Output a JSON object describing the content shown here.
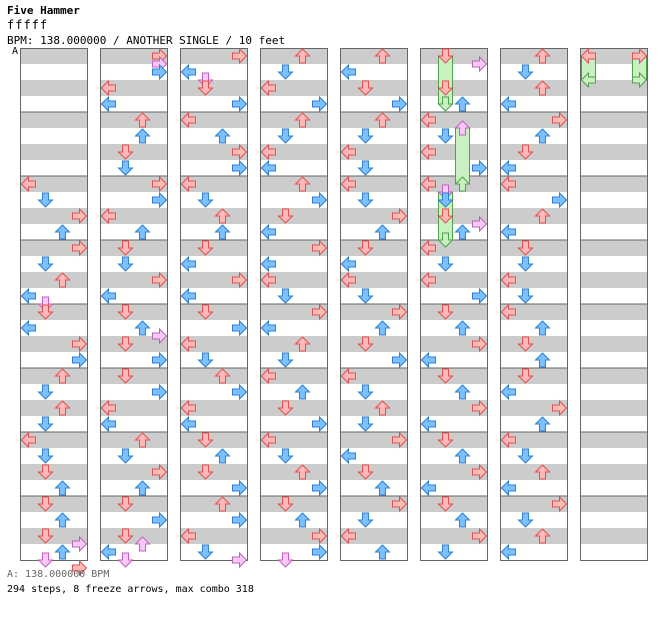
{
  "header": {
    "title": "Five Hammer",
    "difficulty_meter": "fffff",
    "info": "BPM: 138.000000 / ANOTHER SINGLE / 10 feet",
    "section_marker": "A"
  },
  "footer": {
    "bpm_line": "A: 138.000000 BPM",
    "stats_line": "294 steps, 8 freeze arrows, max combo 318"
  },
  "colors": {
    "band_gray": "#cccccc",
    "band_white": "#ffffff",
    "column_border": "#666666",
    "arrow_red_fill": "#ffb8b8",
    "arrow_red_stroke": "#e05050",
    "arrow_blue_fill": "#7ec0ff",
    "arrow_blue_stroke": "#2a7fd0",
    "arrow_pink_fill": "#f8c8f8",
    "arrow_pink_stroke": "#c060c0",
    "freeze_fill": "#c8f0c0",
    "freeze_stroke": "#50a050"
  },
  "chart_data": {
    "type": "step-chart",
    "lanes": [
      "left",
      "down",
      "up",
      "right"
    ],
    "columns": 8,
    "measures_per_column": 8,
    "steps_per_measure": 16,
    "total_steps": 294,
    "freeze_arrows": 8,
    "max_combo": 318,
    "bpm": 138,
    "notes": [
      {
        "c": 0,
        "pos": 8,
        "lane": 0
      },
      {
        "c": 0,
        "pos": 9,
        "lane": 1
      },
      {
        "c": 0,
        "pos": 10,
        "lane": 3
      },
      {
        "c": 0,
        "pos": 11,
        "lane": 2
      },
      {
        "c": 0,
        "pos": 12,
        "lane": 3
      },
      {
        "c": 0,
        "pos": 13,
        "lane": 1
      },
      {
        "c": 0,
        "pos": 14,
        "lane": 2
      },
      {
        "c": 0,
        "pos": 15,
        "lane": 0
      },
      {
        "c": 0,
        "pos": 15.5,
        "lane": 1
      },
      {
        "c": 0,
        "pos": 16,
        "lane": 1
      },
      {
        "c": 0,
        "pos": 17,
        "lane": 0
      },
      {
        "c": 0,
        "pos": 18,
        "lane": 3
      },
      {
        "c": 0,
        "pos": 19,
        "lane": 3
      },
      {
        "c": 0,
        "pos": 20,
        "lane": 2
      },
      {
        "c": 0,
        "pos": 21,
        "lane": 1
      },
      {
        "c": 0,
        "pos": 22,
        "lane": 2
      },
      {
        "c": 0,
        "pos": 23,
        "lane": 1
      },
      {
        "c": 0,
        "pos": 24,
        "lane": 0
      },
      {
        "c": 0,
        "pos": 25,
        "lane": 1
      },
      {
        "c": 0,
        "pos": 26,
        "lane": 1
      },
      {
        "c": 0,
        "pos": 27,
        "lane": 2
      },
      {
        "c": 0,
        "pos": 28,
        "lane": 1
      },
      {
        "c": 0,
        "pos": 29,
        "lane": 2
      },
      {
        "c": 0,
        "pos": 30,
        "lane": 1
      },
      {
        "c": 0,
        "pos": 30.5,
        "lane": 3
      },
      {
        "c": 0,
        "pos": 31,
        "lane": 2
      },
      {
        "c": 0,
        "pos": 31.5,
        "lane": 1
      },
      {
        "c": 0,
        "pos": 32,
        "lane": 3
      },
      {
        "c": 1,
        "pos": 0,
        "lane": 3
      },
      {
        "c": 1,
        "pos": 0.5,
        "lane": 3
      },
      {
        "c": 1,
        "pos": 1,
        "lane": 3
      },
      {
        "c": 1,
        "pos": 2,
        "lane": 0
      },
      {
        "c": 1,
        "pos": 3,
        "lane": 0
      },
      {
        "c": 1,
        "pos": 4,
        "lane": 2
      },
      {
        "c": 1,
        "pos": 5,
        "lane": 2
      },
      {
        "c": 1,
        "pos": 6,
        "lane": 1
      },
      {
        "c": 1,
        "pos": 7,
        "lane": 1
      },
      {
        "c": 1,
        "pos": 8,
        "lane": 3
      },
      {
        "c": 1,
        "pos": 9,
        "lane": 3
      },
      {
        "c": 1,
        "pos": 10,
        "lane": 0
      },
      {
        "c": 1,
        "pos": 11,
        "lane": 2
      },
      {
        "c": 1,
        "pos": 12,
        "lane": 1
      },
      {
        "c": 1,
        "pos": 13,
        "lane": 1
      },
      {
        "c": 1,
        "pos": 14,
        "lane": 3
      },
      {
        "c": 1,
        "pos": 15,
        "lane": 0
      },
      {
        "c": 1,
        "pos": 16,
        "lane": 1
      },
      {
        "c": 1,
        "pos": 17,
        "lane": 2
      },
      {
        "c": 1,
        "pos": 17.5,
        "lane": 3
      },
      {
        "c": 1,
        "pos": 18,
        "lane": 1
      },
      {
        "c": 1,
        "pos": 19,
        "lane": 3
      },
      {
        "c": 1,
        "pos": 20,
        "lane": 1
      },
      {
        "c": 1,
        "pos": 21,
        "lane": 3
      },
      {
        "c": 1,
        "pos": 22,
        "lane": 0
      },
      {
        "c": 1,
        "pos": 23,
        "lane": 0
      },
      {
        "c": 1,
        "pos": 24,
        "lane": 2
      },
      {
        "c": 1,
        "pos": 25,
        "lane": 1
      },
      {
        "c": 1,
        "pos": 26,
        "lane": 3
      },
      {
        "c": 1,
        "pos": 27,
        "lane": 2
      },
      {
        "c": 1,
        "pos": 28,
        "lane": 1
      },
      {
        "c": 1,
        "pos": 29,
        "lane": 3
      },
      {
        "c": 1,
        "pos": 30,
        "lane": 1
      },
      {
        "c": 1,
        "pos": 30.5,
        "lane": 2
      },
      {
        "c": 1,
        "pos": 31,
        "lane": 0
      },
      {
        "c": 1,
        "pos": 31.5,
        "lane": 1
      },
      {
        "c": 2,
        "pos": 0,
        "lane": 3
      },
      {
        "c": 2,
        "pos": 1,
        "lane": 0
      },
      {
        "c": 2,
        "pos": 1.5,
        "lane": 1
      },
      {
        "c": 2,
        "pos": 2,
        "lane": 1
      },
      {
        "c": 2,
        "pos": 3,
        "lane": 3
      },
      {
        "c": 2,
        "pos": 4,
        "lane": 0
      },
      {
        "c": 2,
        "pos": 5,
        "lane": 2
      },
      {
        "c": 2,
        "pos": 6,
        "lane": 3
      },
      {
        "c": 2,
        "pos": 7,
        "lane": 3
      },
      {
        "c": 2,
        "pos": 8,
        "lane": 0
      },
      {
        "c": 2,
        "pos": 9,
        "lane": 1
      },
      {
        "c": 2,
        "pos": 10,
        "lane": 2
      },
      {
        "c": 2,
        "pos": 11,
        "lane": 2
      },
      {
        "c": 2,
        "pos": 12,
        "lane": 1
      },
      {
        "c": 2,
        "pos": 13,
        "lane": 0
      },
      {
        "c": 2,
        "pos": 14,
        "lane": 3
      },
      {
        "c": 2,
        "pos": 15,
        "lane": 0
      },
      {
        "c": 2,
        "pos": 16,
        "lane": 1
      },
      {
        "c": 2,
        "pos": 17,
        "lane": 3
      },
      {
        "c": 2,
        "pos": 18,
        "lane": 0
      },
      {
        "c": 2,
        "pos": 19,
        "lane": 1
      },
      {
        "c": 2,
        "pos": 20,
        "lane": 2
      },
      {
        "c": 2,
        "pos": 21,
        "lane": 3
      },
      {
        "c": 2,
        "pos": 22,
        "lane": 0
      },
      {
        "c": 2,
        "pos": 23,
        "lane": 0
      },
      {
        "c": 2,
        "pos": 24,
        "lane": 1
      },
      {
        "c": 2,
        "pos": 25,
        "lane": 2
      },
      {
        "c": 2,
        "pos": 26,
        "lane": 1
      },
      {
        "c": 2,
        "pos": 27,
        "lane": 3
      },
      {
        "c": 2,
        "pos": 28,
        "lane": 2
      },
      {
        "c": 2,
        "pos": 29,
        "lane": 3
      },
      {
        "c": 2,
        "pos": 30,
        "lane": 0
      },
      {
        "c": 2,
        "pos": 31,
        "lane": 1
      },
      {
        "c": 2,
        "pos": 31.5,
        "lane": 3
      },
      {
        "c": 3,
        "pos": 0,
        "lane": 2
      },
      {
        "c": 3,
        "pos": 1,
        "lane": 1
      },
      {
        "c": 3,
        "pos": 2,
        "lane": 0
      },
      {
        "c": 3,
        "pos": 3,
        "lane": 3
      },
      {
        "c": 3,
        "pos": 4,
        "lane": 2
      },
      {
        "c": 3,
        "pos": 5,
        "lane": 1
      },
      {
        "c": 3,
        "pos": 6,
        "lane": 0
      },
      {
        "c": 3,
        "pos": 7,
        "lane": 0
      },
      {
        "c": 3,
        "pos": 8,
        "lane": 2
      },
      {
        "c": 3,
        "pos": 9,
        "lane": 3
      },
      {
        "c": 3,
        "pos": 10,
        "lane": 1
      },
      {
        "c": 3,
        "pos": 11,
        "lane": 0
      },
      {
        "c": 3,
        "pos": 12,
        "lane": 3
      },
      {
        "c": 3,
        "pos": 13,
        "lane": 0
      },
      {
        "c": 3,
        "pos": 14,
        "lane": 0
      },
      {
        "c": 3,
        "pos": 15,
        "lane": 1
      },
      {
        "c": 3,
        "pos": 16,
        "lane": 3
      },
      {
        "c": 3,
        "pos": 17,
        "lane": 0
      },
      {
        "c": 3,
        "pos": 18,
        "lane": 2
      },
      {
        "c": 3,
        "pos": 19,
        "lane": 1
      },
      {
        "c": 3,
        "pos": 20,
        "lane": 0
      },
      {
        "c": 3,
        "pos": 21,
        "lane": 2
      },
      {
        "c": 3,
        "pos": 22,
        "lane": 1
      },
      {
        "c": 3,
        "pos": 23,
        "lane": 3
      },
      {
        "c": 3,
        "pos": 24,
        "lane": 0
      },
      {
        "c": 3,
        "pos": 25,
        "lane": 1
      },
      {
        "c": 3,
        "pos": 26,
        "lane": 2
      },
      {
        "c": 3,
        "pos": 27,
        "lane": 3
      },
      {
        "c": 3,
        "pos": 28,
        "lane": 1
      },
      {
        "c": 3,
        "pos": 29,
        "lane": 2
      },
      {
        "c": 3,
        "pos": 30,
        "lane": 3
      },
      {
        "c": 3,
        "pos": 31,
        "lane": 3
      },
      {
        "c": 3,
        "pos": 31.5,
        "lane": 1
      },
      {
        "c": 4,
        "pos": 0,
        "lane": 2
      },
      {
        "c": 4,
        "pos": 1,
        "lane": 0
      },
      {
        "c": 4,
        "pos": 2,
        "lane": 1
      },
      {
        "c": 4,
        "pos": 3,
        "lane": 3
      },
      {
        "c": 4,
        "pos": 4,
        "lane": 2
      },
      {
        "c": 4,
        "pos": 5,
        "lane": 1
      },
      {
        "c": 4,
        "pos": 6,
        "lane": 0
      },
      {
        "c": 4,
        "pos": 7,
        "lane": 1
      },
      {
        "c": 4,
        "pos": 8,
        "lane": 0
      },
      {
        "c": 4,
        "pos": 9,
        "lane": 1
      },
      {
        "c": 4,
        "pos": 10,
        "lane": 3
      },
      {
        "c": 4,
        "pos": 11,
        "lane": 2
      },
      {
        "c": 4,
        "pos": 12,
        "lane": 1
      },
      {
        "c": 4,
        "pos": 13,
        "lane": 0
      },
      {
        "c": 4,
        "pos": 14,
        "lane": 0
      },
      {
        "c": 4,
        "pos": 15,
        "lane": 1
      },
      {
        "c": 4,
        "pos": 16,
        "lane": 3
      },
      {
        "c": 4,
        "pos": 17,
        "lane": 2
      },
      {
        "c": 4,
        "pos": 18,
        "lane": 1
      },
      {
        "c": 4,
        "pos": 19,
        "lane": 3
      },
      {
        "c": 4,
        "pos": 20,
        "lane": 0
      },
      {
        "c": 4,
        "pos": 21,
        "lane": 1
      },
      {
        "c": 4,
        "pos": 22,
        "lane": 2
      },
      {
        "c": 4,
        "pos": 23,
        "lane": 1
      },
      {
        "c": 4,
        "pos": 24,
        "lane": 3
      },
      {
        "c": 4,
        "pos": 25,
        "lane": 0
      },
      {
        "c": 4,
        "pos": 26,
        "lane": 1
      },
      {
        "c": 4,
        "pos": 27,
        "lane": 2
      },
      {
        "c": 4,
        "pos": 28,
        "lane": 3
      },
      {
        "c": 4,
        "pos": 29,
        "lane": 1
      },
      {
        "c": 4,
        "pos": 30,
        "lane": 0
      },
      {
        "c": 4,
        "pos": 31,
        "lane": 2
      },
      {
        "c": 5,
        "pos": 0,
        "lane": 1,
        "freeze": 3
      },
      {
        "c": 5,
        "pos": 0.5,
        "lane": 3
      },
      {
        "c": 5,
        "pos": 2,
        "lane": 1
      },
      {
        "c": 5,
        "pos": 3,
        "lane": 2
      },
      {
        "c": 5,
        "pos": 4,
        "lane": 0
      },
      {
        "c": 5,
        "pos": 4.5,
        "lane": 2,
        "freeze": 3.5
      },
      {
        "c": 5,
        "pos": 5,
        "lane": 1
      },
      {
        "c": 5,
        "pos": 6,
        "lane": 0
      },
      {
        "c": 5,
        "pos": 7,
        "lane": 3
      },
      {
        "c": 5,
        "pos": 8,
        "lane": 0
      },
      {
        "c": 5,
        "pos": 8.5,
        "lane": 1,
        "freeze": 1.5
      },
      {
        "c": 5,
        "pos": 9,
        "lane": 1
      },
      {
        "c": 5,
        "pos": 10,
        "lane": 1,
        "freeze": 1.5
      },
      {
        "c": 5,
        "pos": 10.5,
        "lane": 3
      },
      {
        "c": 5,
        "pos": 11,
        "lane": 2
      },
      {
        "c": 5,
        "pos": 12,
        "lane": 0
      },
      {
        "c": 5,
        "pos": 13,
        "lane": 1
      },
      {
        "c": 5,
        "pos": 14,
        "lane": 0
      },
      {
        "c": 5,
        "pos": 15,
        "lane": 3
      },
      {
        "c": 5,
        "pos": 16,
        "lane": 1
      },
      {
        "c": 5,
        "pos": 17,
        "lane": 2
      },
      {
        "c": 5,
        "pos": 18,
        "lane": 3
      },
      {
        "c": 5,
        "pos": 19,
        "lane": 0
      },
      {
        "c": 5,
        "pos": 20,
        "lane": 1
      },
      {
        "c": 5,
        "pos": 21,
        "lane": 2
      },
      {
        "c": 5,
        "pos": 22,
        "lane": 3
      },
      {
        "c": 5,
        "pos": 23,
        "lane": 0
      },
      {
        "c": 5,
        "pos": 24,
        "lane": 1
      },
      {
        "c": 5,
        "pos": 25,
        "lane": 2
      },
      {
        "c": 5,
        "pos": 26,
        "lane": 3
      },
      {
        "c": 5,
        "pos": 27,
        "lane": 0
      },
      {
        "c": 5,
        "pos": 28,
        "lane": 1
      },
      {
        "c": 5,
        "pos": 29,
        "lane": 2
      },
      {
        "c": 5,
        "pos": 30,
        "lane": 3
      },
      {
        "c": 5,
        "pos": 31,
        "lane": 1
      },
      {
        "c": 6,
        "pos": 0,
        "lane": 2
      },
      {
        "c": 6,
        "pos": 1,
        "lane": 1
      },
      {
        "c": 6,
        "pos": 2,
        "lane": 2
      },
      {
        "c": 6,
        "pos": 3,
        "lane": 0
      },
      {
        "c": 6,
        "pos": 4,
        "lane": 3
      },
      {
        "c": 6,
        "pos": 5,
        "lane": 2
      },
      {
        "c": 6,
        "pos": 6,
        "lane": 1
      },
      {
        "c": 6,
        "pos": 7,
        "lane": 0
      },
      {
        "c": 6,
        "pos": 8,
        "lane": 0
      },
      {
        "c": 6,
        "pos": 9,
        "lane": 3
      },
      {
        "c": 6,
        "pos": 10,
        "lane": 2
      },
      {
        "c": 6,
        "pos": 11,
        "lane": 0
      },
      {
        "c": 6,
        "pos": 12,
        "lane": 1
      },
      {
        "c": 6,
        "pos": 13,
        "lane": 1
      },
      {
        "c": 6,
        "pos": 14,
        "lane": 0
      },
      {
        "c": 6,
        "pos": 15,
        "lane": 1
      },
      {
        "c": 6,
        "pos": 16,
        "lane": 0
      },
      {
        "c": 6,
        "pos": 17,
        "lane": 2
      },
      {
        "c": 6,
        "pos": 18,
        "lane": 1
      },
      {
        "c": 6,
        "pos": 19,
        "lane": 2
      },
      {
        "c": 6,
        "pos": 20,
        "lane": 1
      },
      {
        "c": 6,
        "pos": 21,
        "lane": 0
      },
      {
        "c": 6,
        "pos": 22,
        "lane": 3
      },
      {
        "c": 6,
        "pos": 23,
        "lane": 2
      },
      {
        "c": 6,
        "pos": 24,
        "lane": 0
      },
      {
        "c": 6,
        "pos": 25,
        "lane": 1
      },
      {
        "c": 6,
        "pos": 26,
        "lane": 2
      },
      {
        "c": 6,
        "pos": 27,
        "lane": 0
      },
      {
        "c": 6,
        "pos": 28,
        "lane": 3
      },
      {
        "c": 6,
        "pos": 29,
        "lane": 1
      },
      {
        "c": 6,
        "pos": 30,
        "lane": 2
      },
      {
        "c": 6,
        "pos": 31,
        "lane": 0
      },
      {
        "c": 7,
        "pos": 0,
        "lane": 0,
        "freeze": 1.5
      },
      {
        "c": 7,
        "pos": 0,
        "lane": 3,
        "freeze": 1.5
      }
    ]
  }
}
